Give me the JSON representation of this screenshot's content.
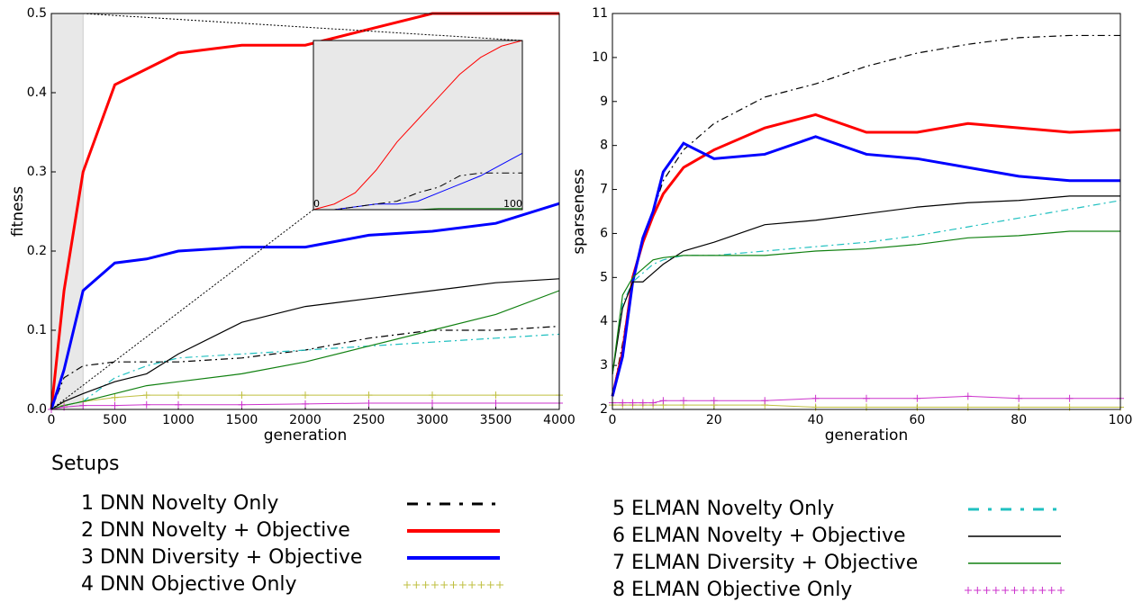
{
  "chart_data": [
    {
      "type": "line",
      "xlabel": "generation",
      "ylabel": "fitness",
      "legend_title": "Setups",
      "xlim": [
        0,
        4000
      ],
      "ylim": [
        0,
        0.5
      ],
      "xticks": [
        0,
        500,
        1000,
        1500,
        2000,
        2500,
        3000,
        3500,
        4000
      ],
      "yticks": [
        {
          "value": 0,
          "label": "0.0"
        },
        0.1,
        0.2,
        0.3,
        0.4,
        0.5
      ],
      "highlight": [
        0,
        250
      ],
      "x": [
        0,
        100,
        250,
        500,
        750,
        1000,
        1500,
        2000,
        2500,
        3000,
        3500,
        4000
      ],
      "series": [
        {
          "name": "1 DNN Novelty Only",
          "color": "#000000",
          "style": "dashdot",
          "width": 1.2,
          "values": [
            0,
            0.04,
            0.055,
            0.06,
            0.06,
            0.06,
            0.065,
            0.075,
            0.09,
            0.1,
            0.1,
            0.105
          ]
        },
        {
          "name": "2 DNN Novelty + Objective",
          "color": "#ff0000",
          "style": "solid",
          "width": 3,
          "values": [
            0,
            0.15,
            0.3,
            0.41,
            0.43,
            0.45,
            0.46,
            0.46,
            0.48,
            0.5,
            0.5,
            0.5
          ]
        },
        {
          "name": "3 DNN Diversity + Objective",
          "color": "#0000ff",
          "style": "solid",
          "width": 3,
          "values": [
            0,
            0.05,
            0.15,
            0.185,
            0.19,
            0.2,
            0.205,
            0.205,
            0.22,
            0.225,
            0.235,
            0.26
          ]
        },
        {
          "name": "4 DNN Objective Only",
          "color": "#bfbf3f",
          "style": "plus",
          "width": 1,
          "values": [
            0,
            0.005,
            0.01,
            0.015,
            0.018,
            0.018,
            0.018,
            0.018,
            0.018,
            0.018,
            0.018,
            0.018
          ]
        },
        {
          "name": "5 ELMAN Novelty Only",
          "color": "#20c0c0",
          "style": "dashdot",
          "width": 1.2,
          "values": [
            0,
            0.005,
            0.01,
            0.04,
            0.055,
            0.065,
            0.07,
            0.075,
            0.08,
            0.085,
            0.09,
            0.095
          ]
        },
        {
          "name": "6 ELMAN Novelty + Objective",
          "color": "#000000",
          "style": "solid",
          "width": 1.2,
          "values": [
            0,
            0.01,
            0.02,
            0.035,
            0.045,
            0.07,
            0.11,
            0.13,
            0.14,
            0.15,
            0.16,
            0.165
          ]
        },
        {
          "name": "7 ELMAN Diversity + Objective",
          "color": "#108010",
          "style": "solid",
          "width": 1.2,
          "values": [
            0,
            0.005,
            0.01,
            0.02,
            0.03,
            0.035,
            0.045,
            0.06,
            0.08,
            0.1,
            0.12,
            0.15
          ]
        },
        {
          "name": "8 ELMAN Objective Only",
          "color": "#cc33cc",
          "style": "plus",
          "width": 1,
          "values": [
            0,
            0.003,
            0.005,
            0.005,
            0.006,
            0.006,
            0.006,
            0.007,
            0.008,
            0.008,
            0.008,
            0.008
          ]
        }
      ]
    },
    {
      "type": "line",
      "xlabel": "generation",
      "ylabel": "sparseness",
      "xlim": [
        0,
        100
      ],
      "ylim": [
        2,
        11
      ],
      "xticks": [
        0,
        20,
        40,
        60,
        80,
        100
      ],
      "yticks": [
        2,
        3,
        4,
        5,
        6,
        7,
        8,
        9,
        10,
        11
      ],
      "x": [
        0,
        2,
        4,
        6,
        8,
        10,
        14,
        20,
        30,
        40,
        50,
        60,
        70,
        80,
        90,
        100
      ],
      "series": [
        {
          "color": "#000000",
          "style": "dashdot",
          "width": 1.2,
          "values": [
            2.3,
            3.5,
            5,
            5.8,
            6.5,
            7.2,
            7.9,
            8.5,
            9.1,
            9.4,
            9.8,
            10.1,
            10.3,
            10.45,
            10.5,
            10.5
          ]
        },
        {
          "color": "#ff0000",
          "style": "solid",
          "width": 3,
          "values": [
            2.3,
            3.3,
            5,
            5.8,
            6.4,
            6.9,
            7.5,
            7.9,
            8.4,
            8.7,
            8.3,
            8.3,
            8.5,
            8.4,
            8.3,
            8.35
          ]
        },
        {
          "color": "#0000ff",
          "style": "solid",
          "width": 3,
          "values": [
            2.3,
            3.2,
            4.9,
            5.9,
            6.5,
            7.4,
            8.05,
            7.7,
            7.8,
            8.2,
            7.8,
            7.7,
            7.5,
            7.3,
            7.2,
            7.2
          ]
        },
        {
          "color": "#bfbf3f",
          "style": "plus",
          "width": 1,
          "values": [
            2.1,
            2.1,
            2.1,
            2.1,
            2.1,
            2.1,
            2.1,
            2.1,
            2.1,
            2.05,
            2.05,
            2.05,
            2.05,
            2.05,
            2.05,
            2.05
          ]
        },
        {
          "color": "#20c0c0",
          "style": "dashdot",
          "width": 1.2,
          "values": [
            2.8,
            4.4,
            4.9,
            5.1,
            5.3,
            5.4,
            5.5,
            5.5,
            5.6,
            5.7,
            5.8,
            5.95,
            6.15,
            6.35,
            6.55,
            6.75
          ]
        },
        {
          "color": "#000000",
          "style": "solid",
          "width": 1.2,
          "values": [
            2.8,
            4.3,
            4.9,
            4.9,
            5.1,
            5.3,
            5.6,
            5.8,
            6.2,
            6.3,
            6.45,
            6.6,
            6.7,
            6.75,
            6.85,
            6.85
          ]
        },
        {
          "color": "#108010",
          "style": "solid",
          "width": 1.2,
          "values": [
            2.8,
            4.6,
            5,
            5.2,
            5.4,
            5.45,
            5.5,
            5.5,
            5.5,
            5.6,
            5.65,
            5.75,
            5.9,
            5.95,
            6.05,
            6.05
          ]
        },
        {
          "color": "#cc33cc",
          "style": "plus",
          "width": 1,
          "values": [
            2.15,
            2.15,
            2.15,
            2.15,
            2.15,
            2.2,
            2.2,
            2.2,
            2.2,
            2.25,
            2.25,
            2.25,
            2.3,
            2.25,
            2.25,
            2.25
          ]
        }
      ]
    },
    {
      "type": "line",
      "xlim": [
        0,
        100
      ],
      "ylim": [
        0,
        0.3
      ],
      "xticks": [
        0,
        100
      ],
      "background": "#e8e8e8",
      "x": [
        0,
        10,
        20,
        30,
        40,
        50,
        60,
        70,
        80,
        90,
        100
      ],
      "series": [
        {
          "color": "#ff0000",
          "style": "solid",
          "width": 1,
          "values": [
            0,
            0.01,
            0.03,
            0.07,
            0.12,
            0.16,
            0.2,
            0.24,
            0.27,
            0.29,
            0.3
          ]
        },
        {
          "color": "#0000ff",
          "style": "solid",
          "width": 1,
          "values": [
            0,
            0,
            0.005,
            0.01,
            0.01,
            0.015,
            0.03,
            0.045,
            0.06,
            0.08,
            0.1
          ]
        },
        {
          "color": "#000000",
          "style": "dashdot",
          "width": 1,
          "values": [
            0,
            0,
            0.005,
            0.01,
            0.015,
            0.03,
            0.04,
            0.06,
            0.065,
            0.065,
            0.065
          ]
        },
        {
          "color": "#108010",
          "style": "solid",
          "width": 1,
          "values": [
            0,
            0,
            0,
            0,
            0,
            0,
            0.002,
            0.002,
            0.002,
            0.002,
            0.002
          ]
        }
      ]
    }
  ]
}
